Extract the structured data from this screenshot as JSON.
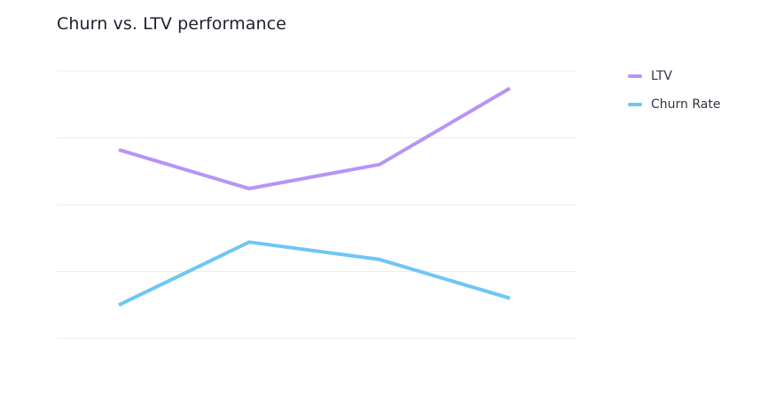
{
  "chart_data": {
    "type": "line",
    "title": "Churn vs. LTV performance",
    "xlabel": "",
    "ylabel": "",
    "categories": [
      "",
      "",
      "",
      ""
    ],
    "ylim": [
      0,
      100
    ],
    "y_gridlines": [
      0,
      25,
      50,
      75,
      100
    ],
    "grid": true,
    "legend_position": "top-right",
    "series": [
      {
        "name": "LTV",
        "color": "#b794f6",
        "values": [
          70.5,
          56,
          65,
          93.5
        ]
      },
      {
        "name": "Churn Rate",
        "color": "#6ec6f5",
        "values": [
          12.5,
          36,
          29.5,
          15
        ]
      }
    ]
  }
}
